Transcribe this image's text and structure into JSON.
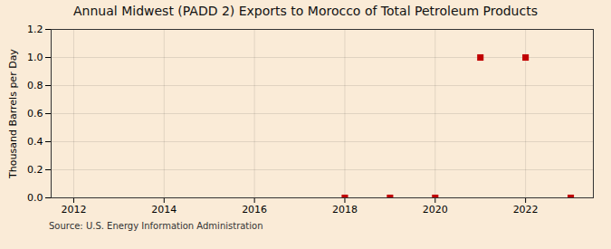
{
  "chart_data": {
    "type": "scatter",
    "title": "Annual Midwest (PADD 2) Exports to Morocco of Total Petroleum Products",
    "ylabel": "Thousand Barrels per Day",
    "annotations": [
      "Source: U.S. Energy Information Administration"
    ],
    "x": [
      2018,
      2019,
      2020,
      2021,
      2022,
      2023
    ],
    "values": [
      0.0,
      0.0,
      0.0,
      1.0,
      1.0,
      0.0
    ],
    "color": "#c00000",
    "marker": "square",
    "xlim": [
      2011.5,
      2023.5
    ],
    "xticks": [
      2012,
      2014,
      2016,
      2018,
      2020,
      2022
    ],
    "ylim": [
      0.0,
      1.2
    ],
    "yticks": [
      {
        "value": 0.0,
        "label": "0.0"
      },
      0.2,
      0.4,
      0.6,
      0.8,
      {
        "value": 1.0,
        "label": "1.0"
      },
      1.2
    ],
    "grid": true
  }
}
